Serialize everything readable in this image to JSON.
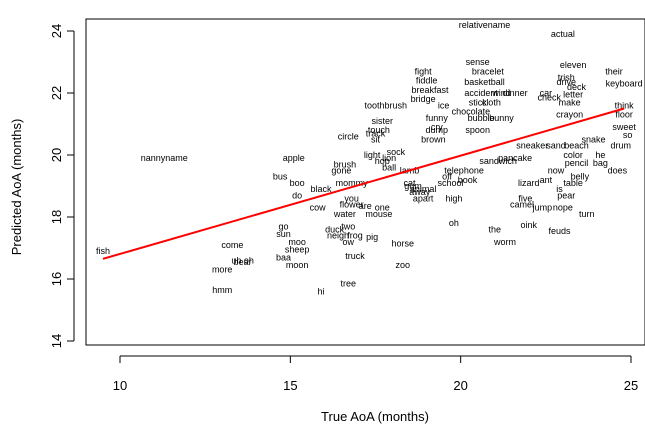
{
  "chart_data": {
    "type": "scatter",
    "title": "",
    "xlabel": "True AoA (months)",
    "ylabel": "Predicted AoA (months)",
    "xlim": [
      9.4,
      25.5
    ],
    "ylim": [
      13.4,
      24.2
    ],
    "x_ticks": [
      10,
      15,
      20,
      25
    ],
    "y_ticks": [
      14,
      16,
      18,
      20,
      22,
      24
    ],
    "grid": false,
    "fit_line": {
      "x": [
        9.5,
        24.8
      ],
      "y": [
        16.65,
        21.5
      ],
      "color": "#ff0000"
    },
    "points": [
      {
        "label": "relativename",
        "x": 20.7,
        "y": 24.2
      },
      {
        "label": "actual",
        "x": 23.0,
        "y": 23.9
      },
      {
        "label": "sense",
        "x": 20.5,
        "y": 23.0
      },
      {
        "label": "bracelet",
        "x": 20.8,
        "y": 22.7
      },
      {
        "label": "eleven",
        "x": 23.3,
        "y": 22.9
      },
      {
        "label": "fight",
        "x": 18.9,
        "y": 22.7
      },
      {
        "label": "fiddle",
        "x": 19.0,
        "y": 22.4
      },
      {
        "label": "basketball",
        "x": 20.7,
        "y": 22.35
      },
      {
        "label": "their",
        "x": 24.5,
        "y": 22.7
      },
      {
        "label": "trish",
        "x": 23.1,
        "y": 22.5
      },
      {
        "label": "keyboard",
        "x": 24.8,
        "y": 22.3
      },
      {
        "label": "breakfast",
        "x": 19.1,
        "y": 22.1
      },
      {
        "label": "accident",
        "x": 20.6,
        "y": 22.0
      },
      {
        "label": "bridge",
        "x": 18.9,
        "y": 21.8
      },
      {
        "label": "toothbrush",
        "x": 17.8,
        "y": 21.6
      },
      {
        "label": "think",
        "x": 24.8,
        "y": 21.6
      },
      {
        "label": "floor",
        "x": 24.8,
        "y": 21.3
      },
      {
        "label": "sister",
        "x": 17.7,
        "y": 21.1
      },
      {
        "label": "chocolate",
        "x": 20.3,
        "y": 21.4
      },
      {
        "label": "crayon",
        "x": 23.2,
        "y": 21.3
      },
      {
        "label": "sweet",
        "x": 24.8,
        "y": 20.9
      },
      {
        "label": "circle",
        "x": 16.7,
        "y": 20.6
      },
      {
        "label": "track",
        "x": 17.5,
        "y": 20.7
      },
      {
        "label": "cry",
        "x": 19.3,
        "y": 20.9
      },
      {
        "label": "so",
        "x": 24.9,
        "y": 20.65
      },
      {
        "label": "drum",
        "x": 24.7,
        "y": 20.3
      },
      {
        "label": "nannyname",
        "x": 11.3,
        "y": 19.9
      },
      {
        "label": "apple",
        "x": 15.1,
        "y": 19.9
      },
      {
        "label": "light",
        "x": 17.4,
        "y": 20.0
      },
      {
        "label": "color",
        "x": 23.3,
        "y": 20.0
      },
      {
        "label": "he",
        "x": 24.1,
        "y": 20.0
      },
      {
        "label": "pencil",
        "x": 23.4,
        "y": 19.75
      },
      {
        "label": "bag",
        "x": 24.1,
        "y": 19.75
      },
      {
        "label": "brush",
        "x": 16.6,
        "y": 19.7
      },
      {
        "label": "does",
        "x": 24.6,
        "y": 19.5
      },
      {
        "label": "gone",
        "x": 16.5,
        "y": 19.5
      },
      {
        "label": "bus",
        "x": 14.7,
        "y": 19.3
      },
      {
        "label": "now",
        "x": 22.8,
        "y": 19.5
      },
      {
        "label": "belly",
        "x": 23.5,
        "y": 19.3
      },
      {
        "label": "boo",
        "x": 15.2,
        "y": 19.1
      },
      {
        "label": "mommy",
        "x": 16.8,
        "y": 19.1
      },
      {
        "label": "ant",
        "x": 22.5,
        "y": 19.2
      },
      {
        "label": "black",
        "x": 15.9,
        "y": 18.9
      },
      {
        "label": "is",
        "x": 22.9,
        "y": 18.9
      },
      {
        "label": "do",
        "x": 15.2,
        "y": 18.7
      },
      {
        "label": "pear",
        "x": 23.1,
        "y": 18.7
      },
      {
        "label": "you",
        "x": 16.8,
        "y": 18.6
      },
      {
        "label": "high",
        "x": 19.8,
        "y": 18.6
      },
      {
        "label": "flower",
        "x": 16.8,
        "y": 18.4
      },
      {
        "label": "are",
        "x": 17.2,
        "y": 18.35
      },
      {
        "label": "camel",
        "x": 21.8,
        "y": 18.4
      },
      {
        "label": "jump",
        "x": 22.4,
        "y": 18.3
      },
      {
        "label": "nope",
        "x": 23.0,
        "y": 18.3
      },
      {
        "label": "cow",
        "x": 15.8,
        "y": 18.3
      },
      {
        "label": "one",
        "x": 17.7,
        "y": 18.3
      },
      {
        "label": "water",
        "x": 16.6,
        "y": 18.1
      },
      {
        "label": "mouse",
        "x": 17.6,
        "y": 18.1
      },
      {
        "label": "turn",
        "x": 23.7,
        "y": 18.1
      },
      {
        "label": "oh",
        "x": 19.8,
        "y": 17.8
      },
      {
        "label": "oink",
        "x": 22.0,
        "y": 17.75
      },
      {
        "label": "duck",
        "x": 16.3,
        "y": 17.6
      },
      {
        "label": "two",
        "x": 16.7,
        "y": 17.7
      },
      {
        "label": "the",
        "x": 21.0,
        "y": 17.6
      },
      {
        "label": "feuds",
        "x": 22.9,
        "y": 17.55
      },
      {
        "label": "go",
        "x": 14.8,
        "y": 17.7
      },
      {
        "label": "sun",
        "x": 14.8,
        "y": 17.45
      },
      {
        "label": "neigh",
        "x": 16.4,
        "y": 17.4
      },
      {
        "label": "frog",
        "x": 16.9,
        "y": 17.4
      },
      {
        "label": "pig",
        "x": 17.4,
        "y": 17.35
      },
      {
        "label": "worm",
        "x": 21.3,
        "y": 17.2
      },
      {
        "label": "ow",
        "x": 16.7,
        "y": 17.2
      },
      {
        "label": "horse",
        "x": 18.3,
        "y": 17.15
      },
      {
        "label": "come",
        "x": 13.3,
        "y": 17.1
      },
      {
        "label": "moo",
        "x": 15.2,
        "y": 17.2
      },
      {
        "label": "sheep",
        "x": 15.2,
        "y": 16.95
      },
      {
        "label": "baa",
        "x": 14.8,
        "y": 16.7
      },
      {
        "label": "truck",
        "x": 16.9,
        "y": 16.75
      },
      {
        "label": "uh oh",
        "x": 13.6,
        "y": 16.6
      },
      {
        "label": "bear",
        "x": 13.6,
        "y": 16.55
      },
      {
        "label": "moon",
        "x": 15.2,
        "y": 16.45
      },
      {
        "label": "zoo",
        "x": 18.3,
        "y": 16.45
      },
      {
        "label": "more",
        "x": 13.0,
        "y": 16.3
      },
      {
        "label": "tree",
        "x": 16.7,
        "y": 15.85
      },
      {
        "label": "hmm",
        "x": 13.0,
        "y": 15.65
      },
      {
        "label": "hi",
        "x": 15.9,
        "y": 15.6
      },
      {
        "label": "fish",
        "x": 9.5,
        "y": 16.9
      }
    ],
    "overlap_labels": [
      {
        "text": "wind",
        "x": 21.2,
        "y": 22.0
      },
      {
        "text": "dinner",
        "x": 21.6,
        "y": 22.0
      },
      {
        "text": "check",
        "x": 22.6,
        "y": 21.85
      },
      {
        "text": "letter",
        "x": 23.3,
        "y": 21.95
      },
      {
        "text": "make",
        "x": 23.2,
        "y": 21.7
      },
      {
        "text": "deck",
        "x": 23.4,
        "y": 22.2
      },
      {
        "text": "drive",
        "x": 23.1,
        "y": 22.35
      },
      {
        "text": "car",
        "x": 22.5,
        "y": 22.0
      },
      {
        "text": "ice",
        "x": 19.5,
        "y": 21.6
      },
      {
        "text": "stick",
        "x": 20.5,
        "y": 21.7
      },
      {
        "text": "cloth",
        "x": 20.9,
        "y": 21.7
      },
      {
        "text": "funny",
        "x": 19.3,
        "y": 21.2
      },
      {
        "text": "bubble",
        "x": 20.6,
        "y": 21.2
      },
      {
        "text": "bunny",
        "x": 21.2,
        "y": 21.2
      },
      {
        "text": "touch",
        "x": 17.6,
        "y": 20.8
      },
      {
        "text": "dump",
        "x": 19.3,
        "y": 20.8
      },
      {
        "text": "spoon",
        "x": 20.5,
        "y": 20.8
      },
      {
        "text": "sit",
        "x": 17.5,
        "y": 20.5
      },
      {
        "text": "brown",
        "x": 19.2,
        "y": 20.5
      },
      {
        "text": "snake",
        "x": 23.9,
        "y": 20.5
      },
      {
        "text": "beach",
        "x": 23.4,
        "y": 20.3
      },
      {
        "text": "sand",
        "x": 22.8,
        "y": 20.3
      },
      {
        "text": "hop",
        "x": 17.7,
        "y": 19.8
      },
      {
        "text": "ball",
        "x": 17.9,
        "y": 19.6
      },
      {
        "text": "lamb",
        "x": 18.5,
        "y": 19.5
      },
      {
        "text": "telephone",
        "x": 20.1,
        "y": 19.5
      },
      {
        "text": "school",
        "x": 19.7,
        "y": 19.1
      },
      {
        "text": "lizard",
        "x": 22.0,
        "y": 19.1
      },
      {
        "text": "book",
        "x": 20.2,
        "y": 19.2
      },
      {
        "text": "table",
        "x": 23.3,
        "y": 19.1
      },
      {
        "text": "sandwich",
        "x": 21.1,
        "y": 19.8
      },
      {
        "text": "pancake",
        "x": 21.6,
        "y": 19.9
      },
      {
        "text": "sneaker",
        "x": 22.1,
        "y": 20.3
      },
      {
        "text": "gum",
        "x": 18.6,
        "y": 19.0
      },
      {
        "text": "animal",
        "x": 18.9,
        "y": 18.9
      },
      {
        "text": "apart",
        "x": 18.9,
        "y": 18.6
      },
      {
        "text": "away",
        "x": 18.8,
        "y": 18.8
      },
      {
        "text": "off",
        "x": 19.6,
        "y": 19.3
      },
      {
        "text": "five",
        "x": 21.9,
        "y": 18.6
      },
      {
        "text": "cat",
        "x": 18.5,
        "y": 19.1
      },
      {
        "text": "sock",
        "x": 18.1,
        "y": 20.1
      },
      {
        "text": "lion",
        "x": 17.9,
        "y": 19.9
      }
    ]
  }
}
